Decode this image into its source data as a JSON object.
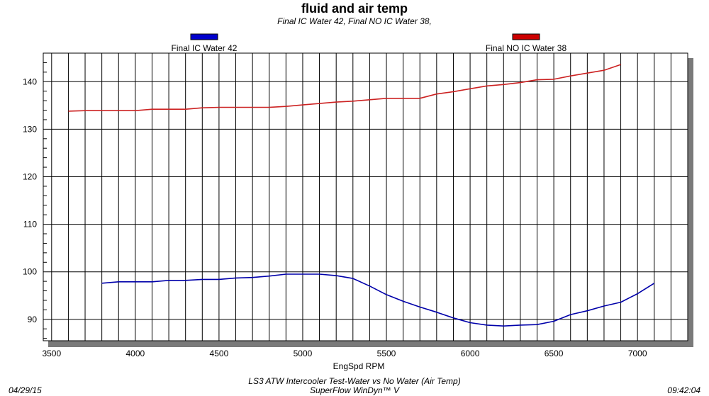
{
  "chart_data": {
    "type": "line",
    "title": "fluid and air temp",
    "subtitle": "Final IC Water 42,  Final NO IC Water 38,",
    "xlabel": "EngSpd RPM",
    "ylabel": "",
    "xlim": [
      3450,
      7300
    ],
    "ylim": [
      85.5,
      146
    ],
    "x_ticks": [
      3500,
      4000,
      4500,
      5000,
      5500,
      6000,
      6500,
      7000
    ],
    "y_ticks": [
      90,
      100,
      110,
      120,
      130,
      140
    ],
    "grid": true,
    "legend_position": "top",
    "series": [
      {
        "name": "Final IC Water 42",
        "color": "#0000aa",
        "swatch_color": "#0000cc",
        "x": [
          3800,
          3900,
          4000,
          4100,
          4200,
          4300,
          4400,
          4500,
          4600,
          4700,
          4800,
          4900,
          5000,
          5100,
          5200,
          5300,
          5400,
          5500,
          5600,
          5700,
          5800,
          5900,
          6000,
          6100,
          6200,
          6300,
          6400,
          6500,
          6600,
          6700,
          6800,
          6900,
          7000,
          7100
        ],
        "y": [
          97.6,
          97.9,
          97.9,
          97.9,
          98.2,
          98.2,
          98.4,
          98.4,
          98.7,
          98.8,
          99.1,
          99.5,
          99.5,
          99.5,
          99.2,
          98.6,
          97.0,
          95.2,
          93.8,
          92.6,
          91.5,
          90.3,
          89.3,
          88.8,
          88.6,
          88.8,
          88.9,
          89.6,
          91.0,
          91.8,
          92.8,
          93.6,
          95.4,
          97.6
        ]
      },
      {
        "name": "Final NO IC Water 38",
        "color": "#cc2222",
        "swatch_color": "#cc0000",
        "x": [
          3600,
          3700,
          3800,
          3900,
          4000,
          4100,
          4200,
          4300,
          4400,
          4500,
          4600,
          4700,
          4800,
          4900,
          5000,
          5100,
          5200,
          5300,
          5400,
          5500,
          5600,
          5700,
          5800,
          5900,
          6000,
          6100,
          6200,
          6300,
          6400,
          6500,
          6600,
          6700,
          6800,
          6900
        ],
        "y": [
          133.8,
          133.9,
          133.9,
          133.9,
          133.9,
          134.2,
          134.2,
          134.2,
          134.5,
          134.6,
          134.6,
          134.6,
          134.6,
          134.8,
          135.1,
          135.4,
          135.7,
          135.9,
          136.2,
          136.5,
          136.5,
          136.5,
          137.4,
          137.9,
          138.5,
          139.1,
          139.4,
          139.8,
          140.4,
          140.5,
          141.2,
          141.8,
          142.4,
          143.6
        ]
      }
    ]
  },
  "footer": {
    "date": "04/29/15",
    "time": "09:42:04",
    "caption_line1": "LS3 ATW Intercooler Test-Water vs No Water (Air Temp)",
    "caption_line2": "SuperFlow WinDyn™ V"
  }
}
